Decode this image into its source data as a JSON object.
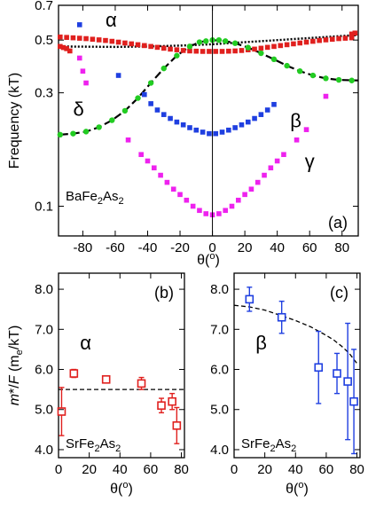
{
  "chart_data": [
    {
      "panel": "(a)",
      "type": "scatter",
      "xlabel": "θ(°)",
      "ylabel": "Frequency (kT)",
      "xlim": [
        -95,
        90
      ],
      "ylim": [
        0.075,
        0.7
      ],
      "yscale": "log",
      "xticks": [
        -80,
        -60,
        -40,
        -20,
        0,
        20,
        40,
        60,
        80
      ],
      "yticks": [
        0.1,
        0.3,
        0.5,
        0.7
      ],
      "sample": "BaFe2As2",
      "series": [
        {
          "name": "α",
          "color": "#e0201e",
          "marker": "square",
          "label_at": [
            -66,
            0.57
          ],
          "x": [
            -94,
            -90,
            -86,
            -82,
            -78,
            -74,
            -70,
            -66,
            -62,
            -58,
            -54,
            -50,
            -46,
            -42,
            -38,
            -34,
            -30,
            -26,
            -22,
            -18,
            -14,
            -10,
            -6,
            -2,
            2,
            6,
            10,
            14,
            18,
            22,
            26,
            30,
            34,
            38,
            42,
            46,
            50,
            54,
            58,
            62,
            66,
            70,
            74,
            78,
            82,
            86
          ],
          "y": [
            0.515,
            0.513,
            0.511,
            0.509,
            0.507,
            0.504,
            0.501,
            0.498,
            0.494,
            0.49,
            0.486,
            0.482,
            0.478,
            0.474,
            0.47,
            0.466,
            0.462,
            0.458,
            0.455,
            0.452,
            0.45,
            0.449,
            0.448,
            0.448,
            0.448,
            0.448,
            0.449,
            0.45,
            0.452,
            0.455,
            0.458,
            0.462,
            0.466,
            0.47,
            0.474,
            0.478,
            0.482,
            0.486,
            0.49,
            0.494,
            0.498,
            0.501,
            0.504,
            0.507,
            0.509,
            0.511
          ]
        },
        {
          "name": "δ",
          "color": "#22cc22",
          "marker": "dot",
          "label_at": [
            -86,
            0.24
          ],
          "x": [
            -94,
            -86,
            -78,
            -70,
            -62,
            -54,
            -46,
            -38,
            -30,
            -22,
            -14,
            -8,
            -4,
            0,
            4,
            8,
            14,
            22,
            30,
            38,
            46,
            54,
            62,
            70,
            78,
            86
          ],
          "y": [
            0.2,
            0.202,
            0.206,
            0.215,
            0.23,
            0.252,
            0.285,
            0.33,
            0.38,
            0.43,
            0.47,
            0.49,
            0.495,
            0.5,
            0.5,
            0.495,
            0.485,
            0.465,
            0.44,
            0.415,
            0.39,
            0.37,
            0.355,
            0.345,
            0.34,
            0.338
          ]
        },
        {
          "name": "β",
          "color": "#1f3fe0",
          "marker": "square",
          "label_at": [
            48,
            0.215
          ],
          "x": [
            -82,
            -58,
            -42,
            -38,
            -34,
            -30,
            -26,
            -22,
            -18,
            -14,
            -10,
            -6,
            -2,
            2,
            6,
            10,
            14,
            18,
            22,
            26,
            30,
            34,
            38
          ],
          "y": [
            0.58,
            0.355,
            0.295,
            0.27,
            0.254,
            0.243,
            0.234,
            0.226,
            0.22,
            0.214,
            0.209,
            0.205,
            0.202,
            0.202,
            0.205,
            0.209,
            0.214,
            0.22,
            0.226,
            0.234,
            0.243,
            0.254,
            0.268
          ]
        },
        {
          "name": "γ",
          "color": "#ee22ee",
          "marker": "square",
          "label_at": [
            57,
            0.145
          ],
          "x": [
            -82,
            -80,
            -78,
            -52,
            -44,
            -40,
            -36,
            -32,
            -28,
            -24,
            -20,
            -16,
            -12,
            -8,
            -4,
            0,
            4,
            8,
            12,
            16,
            20,
            24,
            28,
            32,
            36,
            40,
            44,
            52,
            58,
            70
          ],
          "y": [
            0.42,
            0.37,
            0.33,
            0.19,
            0.165,
            0.155,
            0.145,
            0.135,
            0.126,
            0.118,
            0.112,
            0.106,
            0.1,
            0.096,
            0.093,
            0.092,
            0.093,
            0.096,
            0.1,
            0.106,
            0.112,
            0.118,
            0.126,
            0.135,
            0.145,
            0.155,
            0.165,
            0.19,
            0.21,
            0.29
          ]
        },
        {
          "name": "",
          "color": "#e0201e",
          "marker": "square",
          "x": [
            -94,
            -92,
            -90,
            -88,
            86,
            88
          ],
          "y": [
            0.47,
            0.465,
            0.46,
            0.45,
            0.53,
            0.535
          ]
        }
      ],
      "fits": [
        {
          "name": "",
          "color": "#000000",
          "style": "dotted",
          "x": [
            -94,
            -80,
            -60,
            -40,
            -20,
            0,
            20,
            40,
            60,
            80,
            90
          ],
          "y": [
            0.47,
            0.469,
            0.468,
            0.47,
            0.474,
            0.48,
            0.49,
            0.5,
            0.51,
            0.52,
            0.525
          ]
        },
        {
          "name": "",
          "color": "#000000",
          "style": "dashed",
          "x": [
            -94,
            -86,
            -78,
            -70,
            -62,
            -54,
            -46,
            -38,
            -30,
            -22,
            -14,
            -8,
            0,
            8,
            14,
            22,
            30,
            38,
            46,
            54,
            62,
            70,
            78,
            90
          ],
          "y": [
            0.2,
            0.202,
            0.206,
            0.215,
            0.23,
            0.252,
            0.285,
            0.33,
            0.38,
            0.43,
            0.47,
            0.49,
            0.5,
            0.495,
            0.485,
            0.465,
            0.44,
            0.415,
            0.39,
            0.37,
            0.355,
            0.345,
            0.34,
            0.338
          ]
        }
      ]
    },
    {
      "panel": "(b)",
      "type": "scatter",
      "xlabel": "θ(°)",
      "ylabel": "m*/F (me/kT)",
      "xlim": [
        0,
        82
      ],
      "ylim": [
        3.8,
        8.4
      ],
      "xticks": [
        0,
        20,
        40,
        60,
        80
      ],
      "yticks": [
        4.0,
        5.0,
        6.0,
        7.0,
        8.0
      ],
      "sample": "SrFe2As2",
      "series": [
        {
          "name": "α",
          "color": "#e0201e",
          "marker": "open-square",
          "label_at": [
            14,
            6.5
          ],
          "x": [
            2,
            10,
            31,
            54,
            67,
            74,
            77
          ],
          "y": [
            4.95,
            5.9,
            5.75,
            5.65,
            5.1,
            5.2,
            4.6
          ],
          "yerr": [
            0.6,
            0.1,
            0.08,
            0.15,
            0.18,
            0.2,
            0.45
          ]
        }
      ],
      "reference_line": {
        "y": 5.5,
        "x": [
          0,
          82
        ],
        "style": "dashed"
      }
    },
    {
      "panel": "(c)",
      "type": "scatter",
      "xlabel": "θ(°)",
      "xlim": [
        0,
        82
      ],
      "ylim": [
        3.8,
        8.4
      ],
      "xticks": [
        0,
        20,
        40,
        60,
        80
      ],
      "yticks": [
        4.0,
        5.0,
        6.0,
        7.0,
        8.0
      ],
      "sample": "SrFe2As2",
      "series": [
        {
          "name": "β",
          "color": "#1f3fe0",
          "marker": "open-square",
          "label_at": [
            14,
            6.5
          ],
          "x": [
            10,
            31,
            55,
            67,
            74,
            78
          ],
          "y": [
            7.75,
            7.3,
            6.05,
            5.9,
            5.7,
            5.2
          ],
          "yerr": [
            0.3,
            0.4,
            0.9,
            0.5,
            1.45,
            1.3
          ]
        }
      ],
      "fit": {
        "style": "dashed",
        "x": [
          0,
          10,
          20,
          30,
          40,
          50,
          60,
          65,
          70,
          75,
          80
        ],
        "y": [
          7.6,
          7.56,
          7.48,
          7.35,
          7.22,
          7.06,
          6.85,
          6.73,
          6.58,
          6.4,
          6.15
        ]
      }
    }
  ]
}
